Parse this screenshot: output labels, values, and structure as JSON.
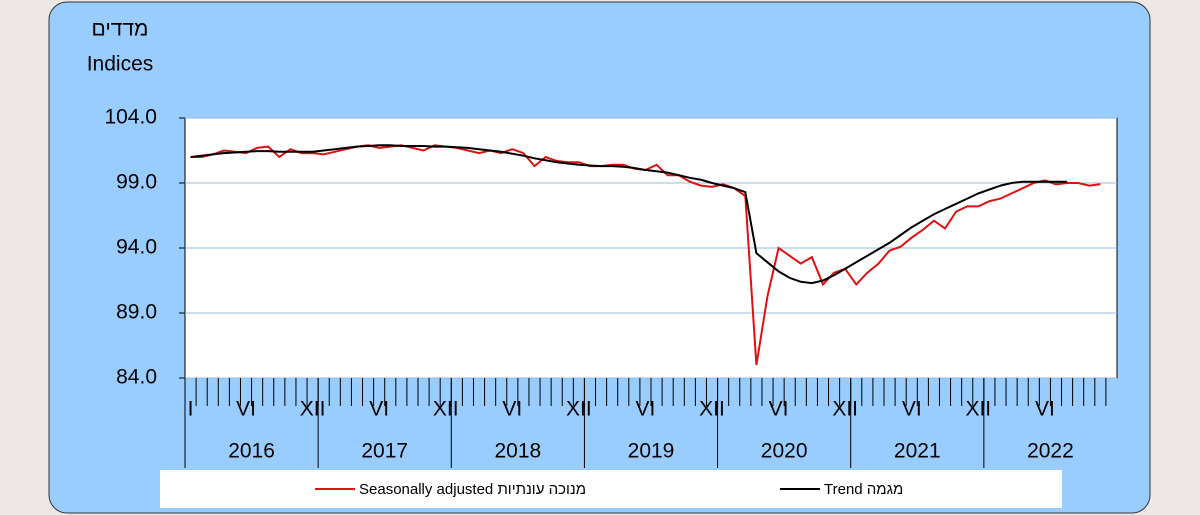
{
  "chart_data": {
    "type": "line",
    "y_title_he": "מדדים",
    "y_title": "Indices",
    "categories": [
      "I",
      null,
      null,
      null,
      null,
      "VI",
      null,
      null,
      null,
      null,
      null,
      "XII",
      null,
      null,
      null,
      null,
      null,
      "VI",
      null,
      null,
      null,
      null,
      null,
      "XII",
      null,
      null,
      null,
      null,
      null,
      "VI",
      null,
      null,
      null,
      null,
      null,
      "XII",
      null,
      null,
      null,
      null,
      null,
      "VI",
      null,
      null,
      null,
      null,
      null,
      "XII",
      null,
      null,
      null,
      null,
      null,
      "VI",
      null,
      null,
      null,
      null,
      null,
      "XII",
      null,
      null,
      null,
      null,
      null,
      "VI",
      null,
      null,
      null,
      null,
      null,
      "XII",
      null,
      null,
      null,
      null,
      null,
      "VI",
      null,
      null,
      null,
      null,
      null,
      null
    ],
    "years": [
      "2016",
      "2017",
      "2018",
      "2019",
      "2020",
      "2021",
      "2022"
    ],
    "series": [
      {
        "name": "Seasonally adjusted  מנוכה עונתיות",
        "color": "#dd1111",
        "values": [
          101.0,
          101.0,
          101.2,
          101.5,
          101.4,
          101.3,
          101.7,
          101.8,
          101.0,
          101.6,
          101.3,
          101.3,
          101.2,
          101.4,
          101.6,
          101.8,
          101.9,
          101.7,
          101.8,
          101.9,
          101.7,
          101.5,
          101.9,
          101.8,
          101.7,
          101.5,
          101.3,
          101.5,
          101.3,
          101.6,
          101.3,
          100.3,
          101.0,
          100.7,
          100.6,
          100.6,
          100.3,
          100.3,
          100.4,
          100.4,
          100.1,
          100.0,
          100.4,
          99.6,
          99.6,
          99.1,
          98.8,
          98.7,
          98.9,
          98.6,
          98.0,
          85.0,
          90.3,
          94.0,
          93.4,
          92.8,
          93.3,
          91.2,
          92.1,
          92.4,
          91.2,
          92.1,
          92.8,
          93.8,
          94.1,
          94.8,
          95.4,
          96.1,
          95.5,
          96.8,
          97.2,
          97.2,
          97.6,
          97.8,
          98.2,
          98.6,
          99.0,
          99.2,
          98.9,
          99.0,
          99.0,
          98.8,
          98.9,
          null
        ]
      },
      {
        "name": "Trend  מגמה",
        "color": "#000000",
        "values": [
          101.0,
          101.1,
          101.2,
          101.3,
          101.35,
          101.4,
          101.45,
          101.45,
          101.4,
          101.4,
          101.4,
          101.4,
          101.5,
          101.6,
          101.7,
          101.8,
          101.85,
          101.9,
          101.9,
          101.85,
          101.85,
          101.85,
          101.8,
          101.8,
          101.75,
          101.7,
          101.6,
          101.5,
          101.4,
          101.25,
          101.1,
          100.9,
          100.75,
          100.6,
          100.5,
          100.4,
          100.35,
          100.3,
          100.3,
          100.25,
          100.15,
          100.0,
          99.9,
          99.8,
          99.6,
          99.4,
          99.25,
          99.0,
          98.8,
          98.6,
          98.3,
          93.6,
          92.9,
          92.2,
          91.7,
          91.4,
          91.3,
          91.5,
          91.9,
          92.4,
          92.9,
          93.4,
          93.9,
          94.4,
          95.0,
          95.6,
          96.1,
          96.6,
          97.0,
          97.4,
          97.8,
          98.2,
          98.5,
          98.8,
          99.0,
          99.1,
          99.1,
          99.1,
          99.1,
          99.1,
          null,
          null,
          null,
          null
        ]
      }
    ],
    "ylim": [
      84,
      104
    ],
    "yticks": [
      {
        "value": 84,
        "label": "84.0"
      },
      {
        "value": 89,
        "label": "89.0"
      },
      {
        "value": 94,
        "label": "94.0"
      },
      {
        "value": 99,
        "label": "99.0"
      },
      {
        "value": 104,
        "label": "104.0"
      }
    ],
    "grid": true
  }
}
